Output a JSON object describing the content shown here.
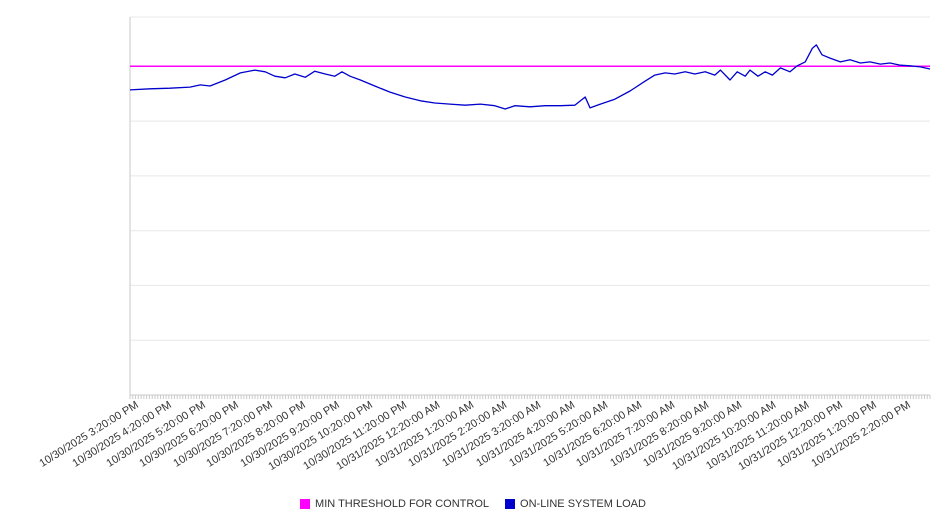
{
  "chart": {
    "legend": [
      {
        "label": "MIN THRESHOLD FOR CONTROL",
        "color": "#ff00ff"
      },
      {
        "label": "ON-LINE SYSTEM LOAD",
        "color": "#0000cd"
      }
    ]
  },
  "chart_data": {
    "type": "line",
    "title": "",
    "xlabel": "",
    "ylabel": "",
    "grid": "horizontal",
    "legend_position": "bottom",
    "ylim": [
      0,
      69
    ],
    "gridline_values": [
      10,
      20,
      30,
      40,
      50,
      60
    ],
    "x_minor_tick_interval_minutes": 5,
    "x_labels": [
      "10/30/2025 3:20:00 PM",
      "10/30/2025 4:20:00 PM",
      "10/30/2025 5:20:00 PM",
      "10/30/2025 6:20:00 PM",
      "10/30/2025 7:20:00 PM",
      "10/30/2025 8:20:00 PM",
      "10/30/2025 9:20:00 PM",
      "10/30/2025 10:20:00 PM",
      "10/30/2025 11:20:00 PM",
      "10/31/2025 12:20:00 AM",
      "10/31/2025 1:20:00 AM",
      "10/31/2025 2:20:00 AM",
      "10/31/2025 3:20:00 AM",
      "10/31/2025 4:20:00 AM",
      "10/31/2025 5:20:00 AM",
      "10/31/2025 6:20:00 AM",
      "10/31/2025 7:20:00 AM",
      "10/31/2025 8:20:00 AM",
      "10/31/2025 9:20:00 AM",
      "10/31/2025 10:20:00 AM",
      "10/31/2025 11:20:00 AM",
      "10/31/2025 12:20:00 PM",
      "10/31/2025 1:20:00 PM",
      "10/31/2025 2:20:00 PM"
    ],
    "series": [
      {
        "name": "MIN THRESHOLD FOR CONTROL",
        "type": "threshold",
        "color": "#ff00ff",
        "value": 60
      },
      {
        "name": "ON-LINE SYSTEM LOAD",
        "type": "line",
        "color": "#0000cd",
        "points": [
          [
            0.0,
            55.7
          ],
          [
            0.025,
            55.9
          ],
          [
            0.05,
            56.0
          ],
          [
            0.075,
            56.2
          ],
          [
            0.088,
            56.6
          ],
          [
            0.1,
            56.4
          ],
          [
            0.119,
            57.5
          ],
          [
            0.138,
            58.8
          ],
          [
            0.156,
            59.3
          ],
          [
            0.169,
            59.0
          ],
          [
            0.181,
            58.2
          ],
          [
            0.194,
            57.9
          ],
          [
            0.206,
            58.6
          ],
          [
            0.219,
            58.0
          ],
          [
            0.231,
            59.1
          ],
          [
            0.244,
            58.6
          ],
          [
            0.256,
            58.2
          ],
          [
            0.265,
            59.0
          ],
          [
            0.275,
            58.2
          ],
          [
            0.288,
            57.5
          ],
          [
            0.306,
            56.4
          ],
          [
            0.325,
            55.3
          ],
          [
            0.344,
            54.4
          ],
          [
            0.363,
            53.7
          ],
          [
            0.381,
            53.3
          ],
          [
            0.4,
            53.1
          ],
          [
            0.419,
            52.9
          ],
          [
            0.438,
            53.1
          ],
          [
            0.456,
            52.8
          ],
          [
            0.469,
            52.2
          ],
          [
            0.481,
            52.8
          ],
          [
            0.5,
            52.6
          ],
          [
            0.519,
            52.8
          ],
          [
            0.538,
            52.8
          ],
          [
            0.556,
            52.9
          ],
          [
            0.569,
            54.4
          ],
          [
            0.575,
            52.4
          ],
          [
            0.588,
            53.1
          ],
          [
            0.606,
            54.0
          ],
          [
            0.625,
            55.5
          ],
          [
            0.644,
            57.3
          ],
          [
            0.656,
            58.4
          ],
          [
            0.669,
            58.8
          ],
          [
            0.681,
            58.6
          ],
          [
            0.694,
            59.0
          ],
          [
            0.706,
            58.6
          ],
          [
            0.719,
            59.0
          ],
          [
            0.731,
            58.4
          ],
          [
            0.738,
            59.3
          ],
          [
            0.75,
            57.5
          ],
          [
            0.759,
            59.0
          ],
          [
            0.769,
            58.2
          ],
          [
            0.775,
            59.3
          ],
          [
            0.785,
            58.2
          ],
          [
            0.794,
            59.0
          ],
          [
            0.803,
            58.4
          ],
          [
            0.813,
            59.7
          ],
          [
            0.825,
            59.0
          ],
          [
            0.834,
            60.1
          ],
          [
            0.844,
            60.8
          ],
          [
            0.853,
            63.3
          ],
          [
            0.858,
            63.9
          ],
          [
            0.865,
            62.1
          ],
          [
            0.875,
            61.5
          ],
          [
            0.888,
            60.8
          ],
          [
            0.9,
            61.2
          ],
          [
            0.913,
            60.6
          ],
          [
            0.925,
            60.8
          ],
          [
            0.938,
            60.4
          ],
          [
            0.95,
            60.6
          ],
          [
            0.963,
            60.2
          ],
          [
            0.975,
            60.1
          ],
          [
            0.988,
            59.9
          ],
          [
            1.0,
            59.5
          ]
        ]
      }
    ]
  }
}
